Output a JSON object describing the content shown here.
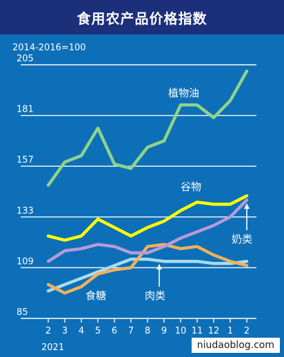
{
  "title": "食用农产品价格指数",
  "base_note": "2014-2016=100",
  "watermark": "niudaoblog.com",
  "chart_data": {
    "type": "line",
    "title": "食用农产品价格指数",
    "x_ticks": [
      "2",
      "3",
      "4",
      "5",
      "6",
      "7",
      "8",
      "9",
      "10",
      "11",
      "12",
      "1",
      "2"
    ],
    "year_label": "2021",
    "y_ticks": [
      85,
      109,
      133,
      157,
      181,
      205
    ],
    "ylim": [
      85,
      205
    ],
    "grid": true,
    "series": [
      {
        "name": "植物油",
        "color": "#8fd38a",
        "values": [
          148,
          159,
          162,
          175,
          158,
          156,
          166,
          169,
          186,
          186,
          180,
          188,
          202
        ]
      },
      {
        "name": "谷物",
        "color": "#ffff00",
        "values": [
          124,
          122,
          124,
          132,
          128,
          124,
          128,
          131,
          136,
          140,
          139,
          139,
          143
        ]
      },
      {
        "name": "奶类",
        "color": "#b99ad8",
        "values": [
          112,
          117,
          118,
          120,
          119,
          116,
          116,
          119,
          123,
          126,
          129,
          133,
          141
        ]
      },
      {
        "name": "食糖",
        "color": "#f2b15a",
        "values": [
          101,
          97,
          100,
          106,
          108,
          109,
          119,
          120,
          118,
          119,
          115,
          112,
          110
        ]
      },
      {
        "name": "肉类",
        "color": "#a9dcf0",
        "values": [
          98,
          101,
          104,
          107,
          110,
          113,
          113,
          112,
          112,
          112,
          111,
          111,
          112
        ]
      }
    ]
  }
}
